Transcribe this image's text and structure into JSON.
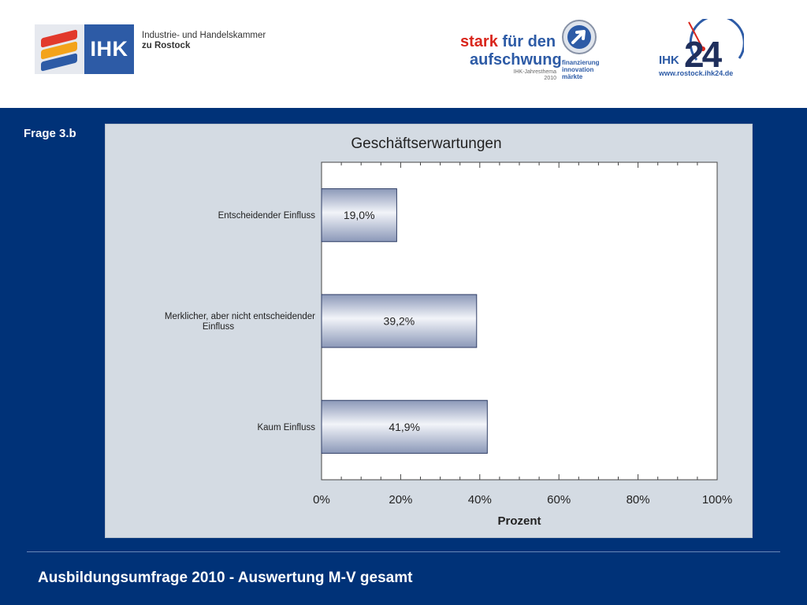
{
  "header": {
    "ihk_logo_word": "IHK",
    "ihk_name_line1": "Industrie- und Handelskammer",
    "ihk_name_line2": "zu Rostock",
    "campaign_part1": "stark",
    "campaign_part2": "für den",
    "campaign_part3": "aufschwung",
    "campaign_sub1": "IHK-Jahresthema",
    "campaign_sub2": "2010",
    "campaign_tag1": "finanzierung",
    "campaign_tag2": "innovation",
    "campaign_tag3": "märkte",
    "ihk24_prefix": "IHK",
    "ihk24_number": "24",
    "ihk24_url": "www.rostock.ihk24.de"
  },
  "slide": {
    "question_label": "Frage 3.b",
    "footer_title": "Ausbildungsumfrage 2010 - Auswertung M-V gesamt"
  },
  "colors": {
    "slide_background": "#003278",
    "panel_background": "#d4dbe3",
    "bar_fill_dark": "#8b98b8",
    "bar_fill_light": "#f2f4f9",
    "bar_stroke": "#2f3e66",
    "accent_red": "#d9261c",
    "accent_blue": "#2d5ba6"
  },
  "chart_data": {
    "type": "bar",
    "orientation": "horizontal",
    "title": "Geschäftserwartungen",
    "xlabel": "Prozent",
    "ylabel": "",
    "categories": [
      "Entscheidender Einfluss",
      "Merklicher, aber nicht entscheidender Einfluss",
      "Kaum Einfluss"
    ],
    "category_lines": [
      [
        "Entscheidender Einfluss"
      ],
      [
        "Merklicher, aber nicht entscheidender",
        "Einfluss"
      ],
      [
        "Kaum Einfluss"
      ]
    ],
    "values": [
      19.0,
      39.2,
      41.9
    ],
    "data_labels": [
      "19,0%",
      "39,2%",
      "41,9%"
    ],
    "xlim": [
      0,
      100
    ],
    "xticks": [
      0,
      20,
      40,
      60,
      80,
      100
    ],
    "xtick_labels": [
      "0%",
      "20%",
      "40%",
      "60%",
      "80%",
      "100%"
    ],
    "grid": false,
    "legend": "none"
  }
}
